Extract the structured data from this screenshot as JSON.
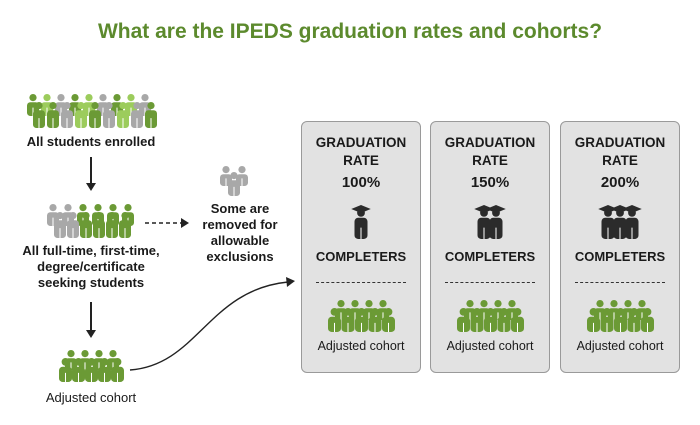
{
  "title": "What are the IPEDS graduation rates and cohorts?",
  "steps": {
    "all_enrolled": "All students enrolled",
    "ftft_line1": "All full-time, first-time,",
    "ftft_line2": "degree/certificate",
    "ftft_line3": "seeking students",
    "adjusted": "Adjusted cohort"
  },
  "exclusion": {
    "line1": "Some are",
    "line2": "removed for",
    "line3": "allowable",
    "line4": "exclusions"
  },
  "cards": [
    {
      "title_line1": "GRADUATION",
      "title_line2": "RATE",
      "rate": "100%",
      "graduates": 1,
      "completers": "COMPLETERS",
      "cohort": "Adjusted cohort"
    },
    {
      "title_line1": "GRADUATION",
      "title_line2": "RATE",
      "rate": "150%",
      "graduates": 2,
      "completers": "COMPLETERS",
      "cohort": "Adjusted cohort"
    },
    {
      "title_line1": "GRADUATION",
      "title_line2": "RATE",
      "rate": "200%",
      "graduates": 3,
      "completers": "COMPLETERS",
      "cohort": "Adjusted cohort"
    }
  ],
  "colors": {
    "green": "#6b9a35",
    "light_green": "#9ccc5c",
    "grey": "#a8a8a8",
    "dark": "#2b2b2b",
    "title": "#5c8a2d"
  },
  "icons": [
    "person-group-icon",
    "graduate-icon",
    "arrow-down-icon",
    "dashed-arrow-icon",
    "curved-arrow-icon"
  ]
}
